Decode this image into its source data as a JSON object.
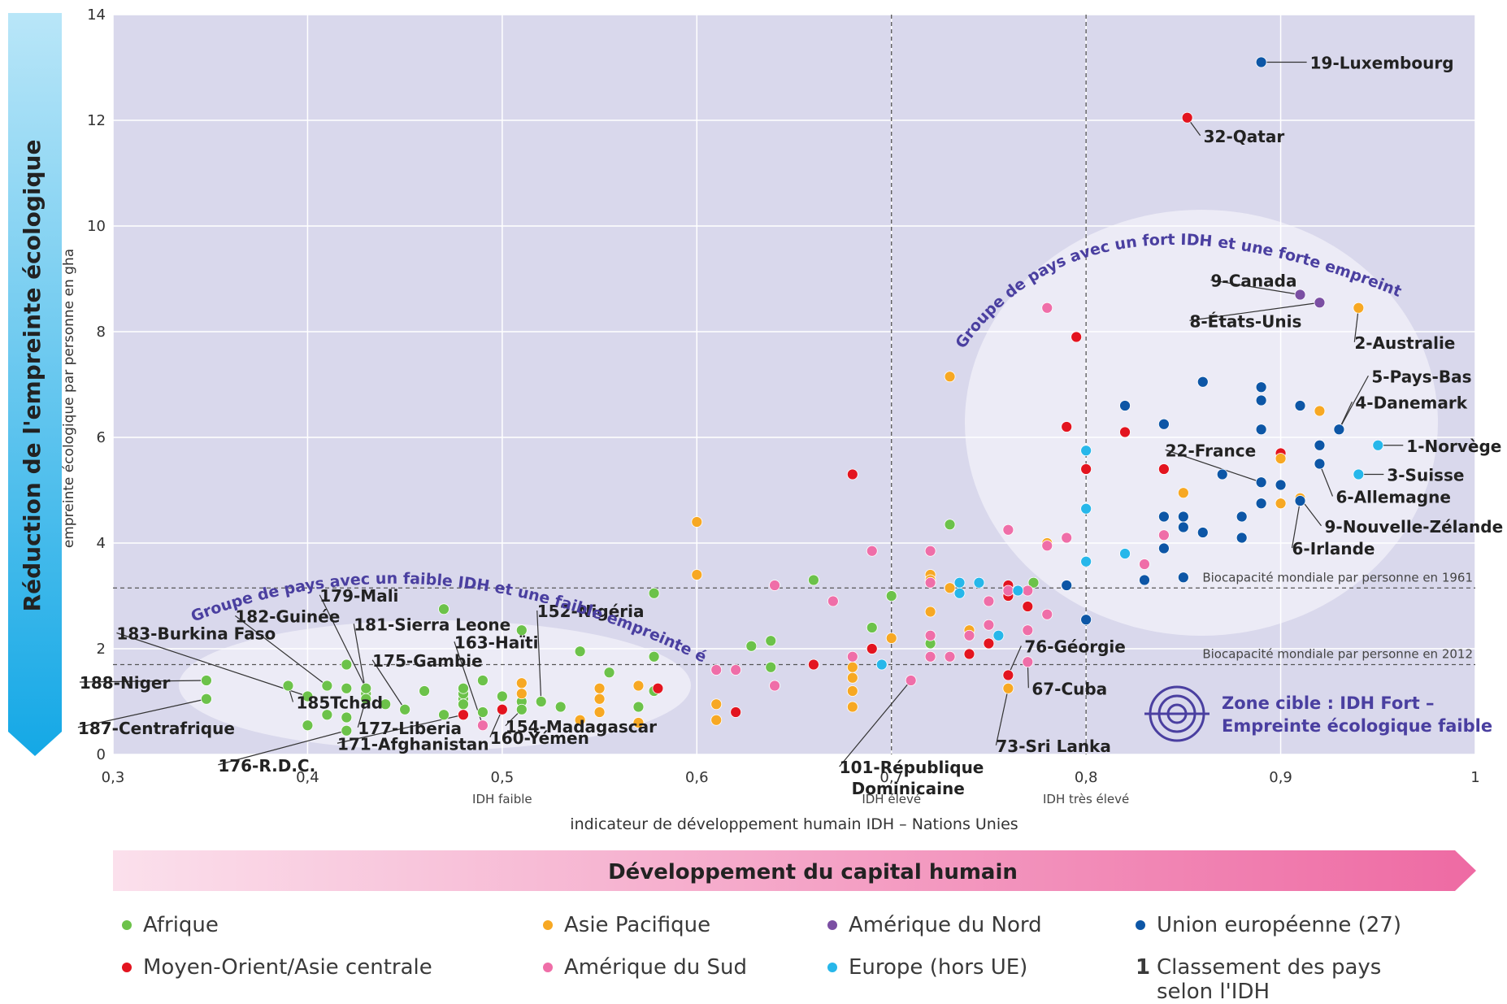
{
  "colors": {
    "Afrique": "#6cc24a",
    "Moyen-Orient/Asie centrale": "#e3141f",
    "Asie Pacifique": "#f7a823",
    "Amérique du Sud": "#ef6ea8",
    "Amérique du Nord": "#7b4fa3",
    "Europe (hors UE)": "#27b7ea",
    "Union européenne (27)": "#0d56a6",
    "plot_bg": "#d9d8ec",
    "ellipse": "#ecebf6",
    "accent_text": "#4a3fa0",
    "rank_symbol": "#3a3a3a"
  },
  "labels": {
    "left_arrow": "Réduction de l'empreinte écologique",
    "bottom_arrow": "Développement du capital humain",
    "group_low": "Groupe de pays avec un faible IDH et une faible empreinte écologique",
    "group_high": "Groupe de pays avec un fort IDH et une forte empreinte écologique",
    "target_line1": "Zone cible : IDH Fort –",
    "target_line2": "Empreinte écologique faible",
    "idh_faible": "IDH faible",
    "idh_eleve": "IDH élevé",
    "idh_tres_eleve": "IDH très élevé",
    "bio1961": "Biocapacité mondiale par personne en 1961",
    "bio2012": "Biocapacité mondiale par personne en 2012"
  },
  "chart_data": {
    "type": "scatter",
    "xlabel": "indicateur de développement humain IDH – Nations Unies",
    "ylabel": "empreinte écologique par personne en gha",
    "xlim": [
      0.3,
      1.0
    ],
    "ylim": [
      0,
      14
    ],
    "xticks": [
      {
        "value": 0.3,
        "label": "0,3"
      },
      {
        "value": 0.4,
        "label": "0,4"
      },
      {
        "value": 0.5,
        "label": "0,5"
      },
      {
        "value": 0.6,
        "label": "0,6"
      },
      {
        "value": 0.7,
        "label": "0,7"
      },
      {
        "value": 0.8,
        "label": "0,8"
      },
      {
        "value": 0.9,
        "label": "0,9"
      },
      {
        "value": 1.0,
        "label": "1"
      }
    ],
    "yticks": [
      {
        "value": 0,
        "label": "0"
      },
      {
        "value": 2,
        "label": "2"
      },
      {
        "value": 4,
        "label": "4"
      },
      {
        "value": 6,
        "label": "6"
      },
      {
        "value": 8,
        "label": "8"
      },
      {
        "value": 10,
        "label": "10"
      },
      {
        "value": 12,
        "label": "12"
      },
      {
        "value": 14,
        "label": "14"
      }
    ],
    "grid": true,
    "reference_lines": {
      "horizontal": [
        {
          "y": 3.15,
          "label": "Biocapacité mondiale par personne en 1961"
        },
        {
          "y": 1.7,
          "label": "Biocapacité mondiale par personne en 2012"
        }
      ],
      "vertical": [
        {
          "x": 0.5,
          "label": "IDH faible"
        },
        {
          "x": 0.7,
          "label": "IDH élevé"
        },
        {
          "x": 0.8,
          "label": "IDH très élevé"
        }
      ]
    },
    "legend": [
      {
        "name": "Afrique",
        "key": "Afrique"
      },
      {
        "name": "Asie Pacifique",
        "key": "Asie Pacifique"
      },
      {
        "name": "Amérique du Nord",
        "key": "Amérique du Nord"
      },
      {
        "name": "Union européenne (27)",
        "key": "Union européenne (27)"
      },
      {
        "name": "Moyen-Orient/Asie centrale",
        "key": "Moyen-Orient/Asie centrale"
      },
      {
        "name": "Amérique du Sud",
        "key": "Amérique du Sud"
      },
      {
        "name": "Europe (hors UE)",
        "key": "Europe (hors UE)"
      },
      {
        "name": "Classement des pays\nselon l'IDH",
        "key": "rank",
        "symbol": "1"
      }
    ],
    "series": [
      {
        "name": "Afrique",
        "points": [
          [
            0.348,
            1.4
          ],
          [
            0.348,
            1.05
          ],
          [
            0.39,
            1.3
          ],
          [
            0.4,
            1.1
          ],
          [
            0.41,
            1.3
          ],
          [
            0.42,
            1.7
          ],
          [
            0.4,
            0.55
          ],
          [
            0.41,
            0.75
          ],
          [
            0.42,
            0.7
          ],
          [
            0.42,
            1.25
          ],
          [
            0.42,
            0.45
          ],
          [
            0.43,
            1.15
          ],
          [
            0.43,
            1.25
          ],
          [
            0.43,
            1.05
          ],
          [
            0.44,
            0.95
          ],
          [
            0.45,
            0.85
          ],
          [
            0.46,
            1.2
          ],
          [
            0.47,
            2.75
          ],
          [
            0.47,
            0.75
          ],
          [
            0.48,
            1.05
          ],
          [
            0.48,
            1.15
          ],
          [
            0.48,
            0.95
          ],
          [
            0.48,
            1.25
          ],
          [
            0.49,
            1.4
          ],
          [
            0.49,
            0.8
          ],
          [
            0.5,
            1.1
          ],
          [
            0.51,
            1.0
          ],
          [
            0.51,
            0.85
          ],
          [
            0.51,
            2.35
          ],
          [
            0.52,
            1.0
          ],
          [
            0.53,
            0.9
          ],
          [
            0.54,
            1.95
          ],
          [
            0.555,
            1.55
          ],
          [
            0.57,
            0.9
          ],
          [
            0.57,
            0.6
          ],
          [
            0.578,
            1.85
          ],
          [
            0.578,
            3.05
          ],
          [
            0.578,
            1.2
          ],
          [
            0.628,
            2.05
          ],
          [
            0.638,
            2.15
          ],
          [
            0.638,
            1.65
          ],
          [
            0.66,
            3.3
          ],
          [
            0.69,
            2.4
          ],
          [
            0.69,
            2.0
          ],
          [
            0.7,
            3.0
          ],
          [
            0.72,
            2.1
          ],
          [
            0.73,
            4.35
          ],
          [
            0.773,
            3.25
          ]
        ]
      },
      {
        "name": "Moyen-Orient/Asie centrale",
        "points": [
          [
            0.48,
            0.75
          ],
          [
            0.5,
            0.85
          ],
          [
            0.58,
            1.25
          ],
          [
            0.62,
            0.8
          ],
          [
            0.66,
            1.7
          ],
          [
            0.68,
            5.3
          ],
          [
            0.69,
            2.0
          ],
          [
            0.74,
            1.9
          ],
          [
            0.75,
            2.1
          ],
          [
            0.76,
            3.0
          ],
          [
            0.76,
            1.5
          ],
          [
            0.76,
            3.2
          ],
          [
            0.77,
            2.8
          ],
          [
            0.79,
            6.2
          ],
          [
            0.795,
            7.9
          ],
          [
            0.8,
            5.4
          ],
          [
            0.82,
            6.1
          ],
          [
            0.84,
            5.4
          ],
          [
            0.852,
            12.05
          ],
          [
            0.9,
            5.7
          ]
        ]
      },
      {
        "name": "Asie Pacifique",
        "points": [
          [
            0.51,
            1.35
          ],
          [
            0.51,
            1.15
          ],
          [
            0.54,
            0.65
          ],
          [
            0.55,
            1.25
          ],
          [
            0.55,
            1.05
          ],
          [
            0.55,
            0.8
          ],
          [
            0.57,
            1.3
          ],
          [
            0.57,
            0.6
          ],
          [
            0.6,
            4.4
          ],
          [
            0.6,
            3.4
          ],
          [
            0.61,
            0.95
          ],
          [
            0.61,
            0.65
          ],
          [
            0.68,
            1.65
          ],
          [
            0.68,
            1.45
          ],
          [
            0.68,
            1.2
          ],
          [
            0.68,
            0.9
          ],
          [
            0.7,
            2.2
          ],
          [
            0.72,
            3.4
          ],
          [
            0.72,
            2.7
          ],
          [
            0.72,
            3.3
          ],
          [
            0.73,
            7.15
          ],
          [
            0.73,
            3.15
          ],
          [
            0.74,
            2.35
          ],
          [
            0.76,
            1.25
          ],
          [
            0.78,
            4.0
          ],
          [
            0.85,
            4.95
          ],
          [
            0.9,
            5.6
          ],
          [
            0.9,
            4.75
          ],
          [
            0.91,
            4.85
          ],
          [
            0.92,
            6.5
          ],
          [
            0.94,
            8.45
          ]
        ]
      },
      {
        "name": "Amérique du Sud",
        "points": [
          [
            0.49,
            0.55
          ],
          [
            0.61,
            1.6
          ],
          [
            0.62,
            1.6
          ],
          [
            0.64,
            3.2
          ],
          [
            0.64,
            1.3
          ],
          [
            0.67,
            2.9
          ],
          [
            0.68,
            1.85
          ],
          [
            0.69,
            3.85
          ],
          [
            0.71,
            1.4
          ],
          [
            0.72,
            3.85
          ],
          [
            0.72,
            3.25
          ],
          [
            0.72,
            2.25
          ],
          [
            0.72,
            1.85
          ],
          [
            0.73,
            1.85
          ],
          [
            0.74,
            2.25
          ],
          [
            0.75,
            2.45
          ],
          [
            0.75,
            2.9
          ],
          [
            0.76,
            3.1
          ],
          [
            0.76,
            4.25
          ],
          [
            0.77,
            3.1
          ],
          [
            0.77,
            2.35
          ],
          [
            0.77,
            1.75
          ],
          [
            0.78,
            8.45
          ],
          [
            0.78,
            3.95
          ],
          [
            0.78,
            2.65
          ],
          [
            0.79,
            4.1
          ],
          [
            0.79,
            3.2
          ],
          [
            0.83,
            3.6
          ],
          [
            0.84,
            4.15
          ]
        ]
      },
      {
        "name": "Amérique du Nord",
        "points": [
          [
            0.91,
            8.7
          ],
          [
            0.92,
            8.55
          ]
        ]
      },
      {
        "name": "Europe (hors UE)",
        "points": [
          [
            0.695,
            1.7
          ],
          [
            0.735,
            3.25
          ],
          [
            0.735,
            3.05
          ],
          [
            0.745,
            3.25
          ],
          [
            0.755,
            2.25
          ],
          [
            0.765,
            3.1
          ],
          [
            0.8,
            5.75
          ],
          [
            0.8,
            4.65
          ],
          [
            0.8,
            3.65
          ],
          [
            0.82,
            3.8
          ],
          [
            0.94,
            5.3
          ],
          [
            0.95,
            5.85
          ]
        ]
      },
      {
        "name": "Union européenne (27)",
        "points": [
          [
            0.79,
            3.2
          ],
          [
            0.8,
            2.55
          ],
          [
            0.82,
            6.6
          ],
          [
            0.83,
            3.3
          ],
          [
            0.84,
            6.25
          ],
          [
            0.84,
            4.5
          ],
          [
            0.84,
            3.9
          ],
          [
            0.85,
            4.5
          ],
          [
            0.85,
            4.3
          ],
          [
            0.85,
            3.35
          ],
          [
            0.86,
            7.05
          ],
          [
            0.86,
            4.2
          ],
          [
            0.87,
            5.3
          ],
          [
            0.88,
            4.5
          ],
          [
            0.88,
            4.1
          ],
          [
            0.89,
            6.95
          ],
          [
            0.89,
            6.7
          ],
          [
            0.89,
            6.15
          ],
          [
            0.89,
            5.15
          ],
          [
            0.89,
            4.75
          ],
          [
            0.89,
            13.1
          ],
          [
            0.9,
            5.1
          ],
          [
            0.91,
            6.6
          ],
          [
            0.91,
            4.8
          ],
          [
            0.92,
            5.85
          ],
          [
            0.92,
            5.5
          ],
          [
            0.93,
            6.15
          ]
        ]
      }
    ],
    "annotations": [
      {
        "text": "19-Luxembourg",
        "x": 0.89,
        "y": 13.1
      },
      {
        "text": "32-Qatar",
        "x": 0.852,
        "y": 12.05
      },
      {
        "text": "9-Canada",
        "x": 0.91,
        "y": 8.7
      },
      {
        "text": "8-États-Unis",
        "x": 0.92,
        "y": 8.55
      },
      {
        "text": "2-Australie",
        "x": 0.94,
        "y": 8.45
      },
      {
        "text": "5-Pays-Bas",
        "x": 0.93,
        "y": 6.15
      },
      {
        "text": "4-Danemark",
        "x": 0.93,
        "y": 6.15
      },
      {
        "text": "1-Norvège",
        "x": 0.95,
        "y": 5.85
      },
      {
        "text": "22-France",
        "x": 0.89,
        "y": 5.15
      },
      {
        "text": "3-Suisse",
        "x": 0.94,
        "y": 5.3
      },
      {
        "text": "6-Allemagne",
        "x": 0.92,
        "y": 5.5
      },
      {
        "text": "9-Nouvelle-Zélande",
        "x": 0.91,
        "y": 4.85
      },
      {
        "text": "6-Irlande",
        "x": 0.91,
        "y": 4.8
      },
      {
        "text": "188-Niger",
        "x": 0.348,
        "y": 1.4
      },
      {
        "text": "187-Centrafrique",
        "x": 0.348,
        "y": 1.05
      },
      {
        "text": "185Tchad",
        "x": 0.39,
        "y": 1.3
      },
      {
        "text": "183-Burkina Faso",
        "x": 0.4,
        "y": 1.1
      },
      {
        "text": "182-Guinée",
        "x": 0.41,
        "y": 1.3
      },
      {
        "text": "179-Mali",
        "x": 0.43,
        "y": 1.25
      },
      {
        "text": "181-Sierra Leone",
        "x": 0.43,
        "y": 1.15
      },
      {
        "text": "175-Gambie",
        "x": 0.45,
        "y": 0.85
      },
      {
        "text": "176-R.D.C.",
        "x": 0.42,
        "y": 0.45
      },
      {
        "text": "177-Liberia",
        "x": 0.43,
        "y": 1.05
      },
      {
        "text": "171-Afghanistan",
        "x": 0.48,
        "y": 0.75
      },
      {
        "text": "163-Haïti",
        "x": 0.49,
        "y": 0.55
      },
      {
        "text": "160-Yémen",
        "x": 0.5,
        "y": 0.85
      },
      {
        "text": "152-Nigéria",
        "x": 0.52,
        "y": 1.0
      },
      {
        "text": "154-Madagascar",
        "x": 0.51,
        "y": 0.85
      },
      {
        "text": "101-République Dominicaine",
        "x": 0.71,
        "y": 1.4
      },
      {
        "text": "76-Géorgie",
        "x": 0.76,
        "y": 1.5
      },
      {
        "text": "67-Cuba",
        "x": 0.77,
        "y": 1.75
      },
      {
        "text": "73-Sri Lanka",
        "x": 0.76,
        "y": 1.25
      }
    ]
  }
}
